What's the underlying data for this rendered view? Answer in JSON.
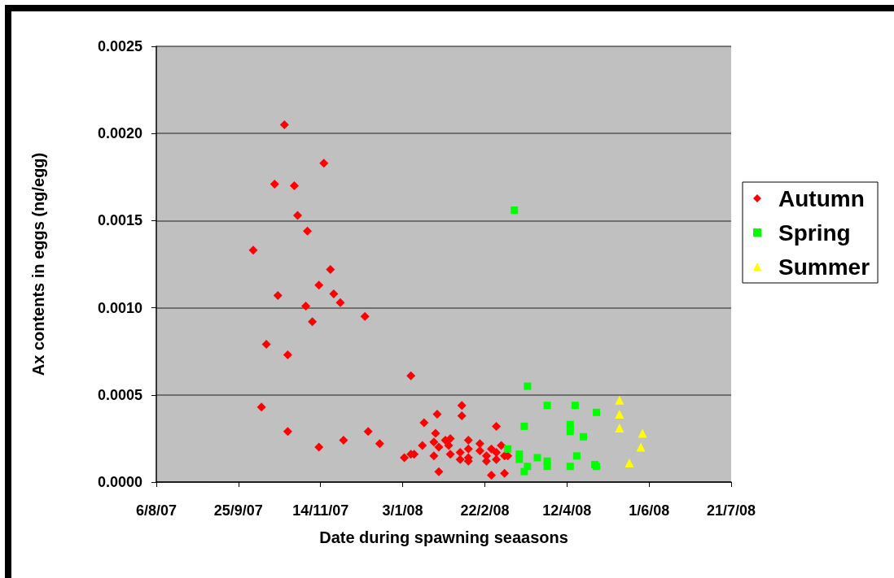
{
  "chart_data": {
    "type": "scatter",
    "xlabel": "Date during spawning seaasons",
    "ylabel": "Ax contents in eggs (ng/egg)",
    "xlim": [
      "2007-08-06",
      "2008-07-21"
    ],
    "xticks": [
      {
        "value": "2007-08-06",
        "label": "6/8/07"
      },
      {
        "value": "2007-09-25",
        "label": "25/9/07"
      },
      {
        "value": "2007-11-14",
        "label": "14/11/07"
      },
      {
        "value": "2008-01-03",
        "label": "3/1/08"
      },
      {
        "value": "2008-02-22",
        "label": "22/2/08"
      },
      {
        "value": "2008-04-12",
        "label": "12/4/08"
      },
      {
        "value": "2008-06-01",
        "label": "1/6/08"
      },
      {
        "value": "2008-07-21",
        "label": "21/7/08"
      }
    ],
    "ylim": [
      0,
      0.0025
    ],
    "yticks": [
      {
        "value": 0,
        "label": "0.0000"
      },
      0.0005,
      {
        "value": 0.001,
        "label": "0.0010"
      },
      0.0015,
      {
        "value": 0.002,
        "label": "0.0020"
      },
      0.0025
    ],
    "grid": "y",
    "legend": "right",
    "series": [
      {
        "name": "Autumn",
        "color": "#ff0000",
        "marker": "diamond",
        "x": [
          "2007-10-23",
          "2007-11-16",
          "2007-10-17",
          "2007-10-29",
          "2007-10-31",
          "2007-11-06",
          "2007-10-04",
          "2007-11-20",
          "2007-11-13",
          "2007-11-22",
          "2007-11-26",
          "2007-10-19",
          "2007-11-05",
          "2007-12-11",
          "2007-11-09",
          "2007-10-12",
          "2007-10-25",
          "2007-10-09",
          "2007-10-25",
          "2007-11-13",
          "2007-11-28",
          "2007-12-13",
          "2007-12-20",
          "2008-01-08",
          "2008-02-08",
          "2008-02-08",
          "2008-01-24",
          "2008-01-16",
          "2008-02-29",
          "2008-01-23",
          "2008-01-22",
          "2008-01-29",
          "2008-02-01",
          "2008-01-25",
          "2008-01-31",
          "2008-01-15",
          "2008-02-12",
          "2008-02-12",
          "2008-02-19",
          "2008-02-19",
          "2008-02-26",
          "2008-03-03",
          "2008-02-29",
          "2008-01-04",
          "2008-01-08",
          "2008-01-10",
          "2008-01-22",
          "2008-02-01",
          "2008-02-07",
          "2008-02-07",
          "2008-02-12",
          "2008-02-12",
          "2008-02-23",
          "2008-02-23",
          "2008-02-29",
          "2008-03-05",
          "2008-03-07",
          "2008-01-25",
          "2008-02-26",
          "2008-03-05"
        ],
        "values": [
          0.00205,
          0.00183,
          0.00171,
          0.0017,
          0.00153,
          0.00144,
          0.00133,
          0.00122,
          0.00113,
          0.00108,
          0.00103,
          0.00107,
          0.00101,
          0.00095,
          0.00092,
          0.00079,
          0.00073,
          0.00043,
          0.00029,
          0.0002,
          0.00024,
          0.00029,
          0.00022,
          0.00061,
          0.00044,
          0.00038,
          0.00039,
          0.00034,
          0.00032,
          0.00028,
          0.00023,
          0.00024,
          0.00025,
          0.0002,
          0.00021,
          0.00021,
          0.00024,
          0.00019,
          0.00022,
          0.00018,
          0.00019,
          0.00021,
          0.00017,
          0.00014,
          0.00016,
          0.00016,
          0.00015,
          0.00016,
          0.00017,
          0.00013,
          0.00014,
          0.00012,
          0.00015,
          0.00012,
          0.00013,
          0.00015,
          0.00015,
          6e-05,
          4e-05,
          5e-05
        ]
      },
      {
        "name": "Spring",
        "color": "#00ff00",
        "marker": "square",
        "x": [
          "2008-03-11",
          "2008-03-19",
          "2008-03-31",
          "2008-04-17",
          "2008-04-30",
          "2008-03-17",
          "2008-04-14",
          "2008-04-14",
          "2008-04-22",
          "2008-03-07",
          "2008-03-14",
          "2008-03-14",
          "2008-03-25",
          "2008-03-31",
          "2008-03-31",
          "2008-04-18",
          "2008-03-19",
          "2008-03-17",
          "2008-04-14",
          "2008-04-29",
          "2008-04-30"
        ],
        "values": [
          0.00156,
          0.00055,
          0.00044,
          0.00044,
          0.0004,
          0.00032,
          0.00033,
          0.00029,
          0.00026,
          0.00019,
          0.00016,
          0.00013,
          0.00014,
          0.00012,
          9e-05,
          0.00015,
          9e-05,
          6e-05,
          9e-05,
          0.0001,
          9e-05
        ]
      },
      {
        "name": "Summer",
        "color": "#ffff00",
        "marker": "triangle",
        "x": [
          "2008-05-14",
          "2008-05-14",
          "2008-05-14",
          "2008-05-28",
          "2008-05-27",
          "2008-05-20"
        ],
        "values": [
          0.00047,
          0.00039,
          0.00031,
          0.00028,
          0.0002,
          0.00011
        ]
      }
    ]
  }
}
